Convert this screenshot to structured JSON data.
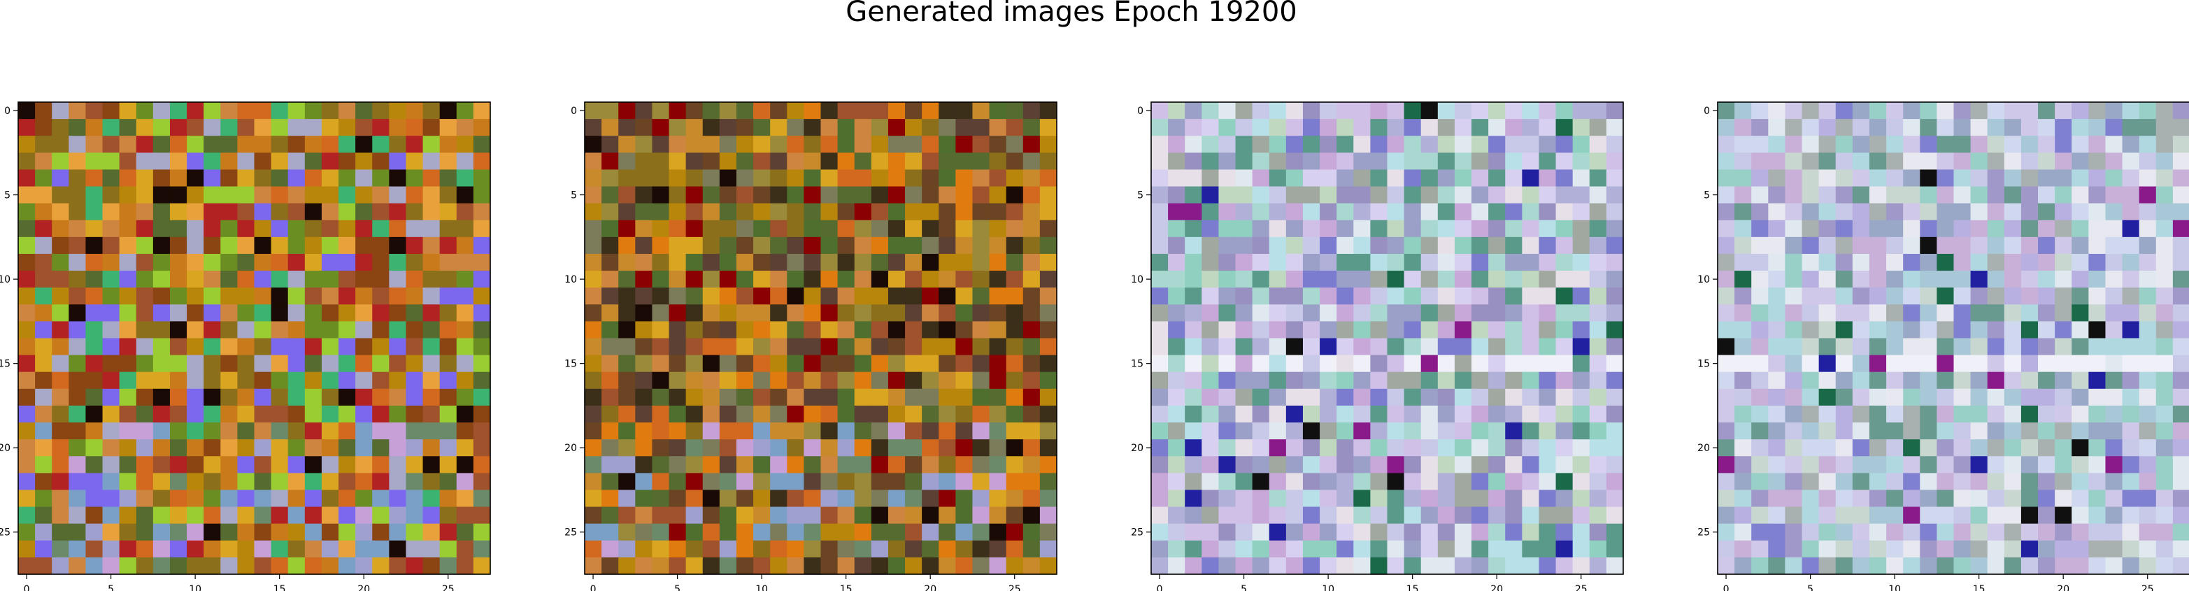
{
  "figure": {
    "title": "Generated images Epoch 19200"
  },
  "chart_data": {
    "type": "heatmap",
    "title": "Generated images Epoch 19200",
    "panels": [
      {
        "name": "",
        "grid_size": 28,
        "xlim": [
          -0.5,
          27.5
        ],
        "ylim": [
          27.5,
          -0.5
        ],
        "xticks": [
          0,
          5,
          10,
          15,
          20,
          25
        ],
        "yticks": [
          0,
          5,
          10,
          15,
          20,
          25
        ],
        "palette": [
          "#b8860b",
          "#c97a1a",
          "#8b6f1a",
          "#a0522d",
          "#d2691e",
          "#6b8e23",
          "#cd853f",
          "#daa520",
          "#8b4513",
          "#b22222",
          "#9acd32",
          "#556b2f",
          "#e9a23b",
          "#a8a8c8",
          "#7b68ee",
          "#3cb371"
        ],
        "region": "warm"
      },
      {
        "name": "",
        "grid_size": 28,
        "xlim": [
          -0.5,
          27.5
        ],
        "ylim": [
          27.5,
          -0.5
        ],
        "xticks": [
          0,
          5,
          10,
          15,
          20,
          25
        ],
        "yticks": [
          0,
          5,
          10,
          15,
          20,
          25
        ],
        "palette": [
          "#8b6f1a",
          "#b8860b",
          "#a0522d",
          "#6b4423",
          "#cd853f",
          "#d2691e",
          "#e07b10",
          "#556b2f",
          "#3b2f1a",
          "#8b0000",
          "#daa520",
          "#9a8a3a",
          "#5c4033",
          "#c88a2a",
          "#7c7c5a",
          "#4f6f2f"
        ],
        "region": "dark"
      },
      {
        "name": "",
        "grid_size": 28,
        "xlim": [
          -0.5,
          27.5
        ],
        "ylim": [
          27.5,
          -0.5
        ],
        "xticks": [
          0,
          5,
          10,
          15,
          20,
          25
        ],
        "yticks": [
          0,
          5,
          10,
          15,
          20,
          25
        ],
        "palette": [
          "#c8c8e8",
          "#d8d0f0",
          "#a8d8d0",
          "#b0b0d8",
          "#e0e8f0",
          "#9aa0c8",
          "#8fd0c0",
          "#c8a8d8",
          "#e8e0e8",
          "#b8e0e8",
          "#a0a8a0",
          "#7b7bd0",
          "#d0c0e8",
          "#5a9a8a",
          "#c0d8c0",
          "#9890c0"
        ],
        "region": "pastel"
      },
      {
        "name": "",
        "grid_size": 28,
        "xlim": [
          -0.5,
          27.5
        ],
        "ylim": [
          27.5,
          -0.5
        ],
        "xticks": [
          0,
          5,
          10,
          15,
          20,
          25
        ],
        "yticks": [
          0,
          5,
          10,
          15,
          20,
          25
        ],
        "palette": [
          "#c8c8e8",
          "#d0d8f0",
          "#a8c8d8",
          "#b8b0e0",
          "#e0e8f0",
          "#9aa8c8",
          "#98d0c8",
          "#c8b0d8",
          "#e8e8f0",
          "#b0d8e0",
          "#a8b0b0",
          "#8080d0",
          "#d0c8e8",
          "#689a90",
          "#c8d8d0",
          "#a098c8"
        ],
        "region": "pastel2"
      }
    ]
  }
}
